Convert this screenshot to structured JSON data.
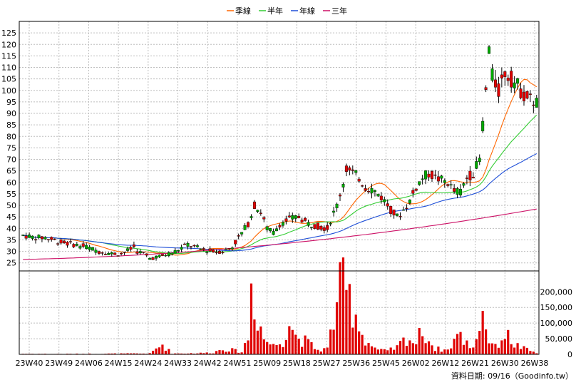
{
  "chart_data": {
    "type": "candlestick",
    "legend": [
      {
        "name": "季線",
        "color": "#ff6600"
      },
      {
        "name": "半年",
        "color": "#33cc33"
      },
      {
        "name": "年線",
        "color": "#1f4fd8"
      },
      {
        "name": "三年",
        "color": "#cc1166"
      }
    ],
    "price_axis": {
      "ylim": [
        25,
        125
      ],
      "ticks": [
        25,
        30,
        35,
        40,
        45,
        50,
        55,
        60,
        65,
        70,
        75,
        80,
        85,
        90,
        95,
        100,
        105,
        110,
        115,
        120,
        125
      ]
    },
    "volume_axis": {
      "ylim": [
        0,
        250000
      ],
      "ticks": [
        "0",
        "50,000",
        "100,000",
        "150,000",
        "200,000"
      ]
    },
    "x_labels": [
      "23W40",
      "23W49",
      "24W06",
      "24W15",
      "24W24",
      "24W33",
      "24W42",
      "24W51",
      "25W09",
      "25W18",
      "25W27",
      "25W36",
      "25W45",
      "26W02",
      "26W12",
      "26W21",
      "26W30",
      "26W38"
    ],
    "grid": true,
    "footer": "資料日期: 09/16（Goodinfo.tw）",
    "anchors": {
      "close": [
        [
          0,
          37
        ],
        [
          4,
          36
        ],
        [
          7,
          36
        ],
        [
          12,
          34
        ],
        [
          16,
          33
        ],
        [
          20,
          32
        ],
        [
          24,
          30
        ],
        [
          28,
          29
        ],
        [
          31,
          29
        ],
        [
          34,
          31
        ],
        [
          35,
          32
        ],
        [
          36,
          30
        ],
        [
          38,
          29
        ],
        [
          40,
          27
        ],
        [
          44,
          28
        ],
        [
          48,
          30
        ],
        [
          52,
          33
        ],
        [
          56,
          31
        ],
        [
          60,
          30
        ],
        [
          63,
          30
        ],
        [
          66,
          32
        ],
        [
          69,
          38
        ],
        [
          71,
          42
        ],
        [
          73,
          50
        ],
        [
          75,
          47
        ],
        [
          77,
          40
        ],
        [
          79,
          38
        ],
        [
          81,
          42
        ],
        [
          84,
          44
        ],
        [
          87,
          45
        ],
        [
          90,
          42
        ],
        [
          93,
          41
        ],
        [
          96,
          40
        ],
        [
          99,
          50
        ],
        [
          101,
          60
        ],
        [
          102,
          66
        ],
        [
          104,
          64
        ],
        [
          106,
          62
        ],
        [
          108,
          58
        ],
        [
          110,
          57
        ],
        [
          112,
          55
        ],
        [
          114,
          52
        ],
        [
          116,
          48
        ],
        [
          118,
          45
        ],
        [
          120,
          48
        ],
        [
          122,
          52
        ],
        [
          124,
          58
        ],
        [
          126,
          62
        ],
        [
          128,
          64
        ],
        [
          130,
          62
        ],
        [
          132,
          61
        ],
        [
          134,
          60
        ],
        [
          136,
          56
        ],
        [
          138,
          56
        ],
        [
          140,
          62
        ],
        [
          142,
          64
        ],
        [
          144,
          70
        ],
        [
          145,
          85
        ],
        [
          146,
          100
        ],
        [
          147,
          118
        ],
        [
          148,
          106
        ],
        [
          150,
          100
        ],
        [
          152,
          108
        ],
        [
          154,
          105
        ],
        [
          156,
          102
        ],
        [
          158,
          98
        ],
        [
          160,
          96
        ],
        [
          162,
          95
        ]
      ],
      "volume": [
        [
          0,
          2000
        ],
        [
          10,
          1500
        ],
        [
          20,
          2000
        ],
        [
          30,
          2500
        ],
        [
          40,
          3000
        ],
        [
          44,
          35000
        ],
        [
          47,
          3000
        ],
        [
          55,
          4000
        ],
        [
          60,
          6000
        ],
        [
          63,
          20000
        ],
        [
          66,
          15000
        ],
        [
          69,
          8000
        ],
        [
          71,
          60000
        ],
        [
          72,
          245000
        ],
        [
          74,
          140000
        ],
        [
          76,
          55000
        ],
        [
          79,
          30000
        ],
        [
          82,
          50000
        ],
        [
          84,
          125000
        ],
        [
          86,
          65000
        ],
        [
          90,
          40000
        ],
        [
          93,
          15000
        ],
        [
          96,
          20000
        ],
        [
          98,
          120000
        ],
        [
          99,
          220000
        ],
        [
          101,
          232000
        ],
        [
          103,
          200000
        ],
        [
          105,
          150000
        ],
        [
          107,
          70000
        ],
        [
          109,
          40000
        ],
        [
          112,
          15000
        ],
        [
          115,
          12000
        ],
        [
          118,
          25000
        ],
        [
          121,
          60000
        ],
        [
          124,
          40000
        ],
        [
          126,
          90000
        ],
        [
          128,
          50000
        ],
        [
          130,
          20000
        ],
        [
          134,
          15000
        ],
        [
          137,
          70000
        ],
        [
          140,
          40000
        ],
        [
          142,
          25000
        ],
        [
          145,
          148000
        ],
        [
          147,
          55000
        ],
        [
          149,
          25000
        ],
        [
          152,
          75000
        ],
        [
          155,
          35000
        ],
        [
          158,
          20000
        ],
        [
          162,
          5000
        ]
      ]
    }
  }
}
